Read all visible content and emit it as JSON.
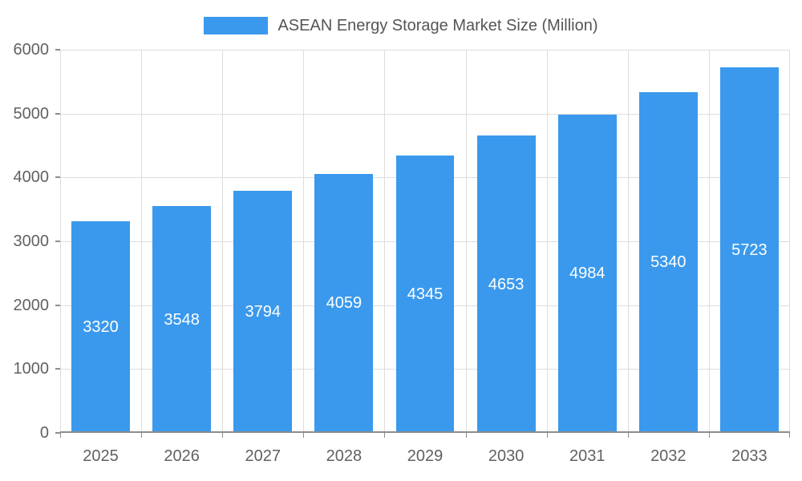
{
  "chart_data": {
    "type": "bar",
    "title": "ASEAN Energy Storage Market Size (Million)",
    "legend": [
      "ASEAN Energy Storage Market Size (Million)"
    ],
    "legend_position": "top",
    "categories": [
      "2025",
      "2026",
      "2027",
      "2028",
      "2029",
      "2030",
      "2031",
      "2032",
      "2033"
    ],
    "values": [
      3320,
      3548,
      3794,
      4059,
      4345,
      4653,
      4984,
      5340,
      5723
    ],
    "xlabel": "",
    "ylabel": "",
    "ylim": [
      0,
      6000
    ],
    "yticks": [
      0,
      1000,
      2000,
      3000,
      4000,
      5000,
      6000
    ],
    "grid": true,
    "value_label_position": "inside-middle",
    "colors": {
      "bar": "#3A99EC",
      "grid_line": "#DDDDDD",
      "axis_line": "#8C8C8C",
      "tick_text": "#616161",
      "legend_text": "#555555",
      "value_text": "#FFFFFF"
    }
  }
}
